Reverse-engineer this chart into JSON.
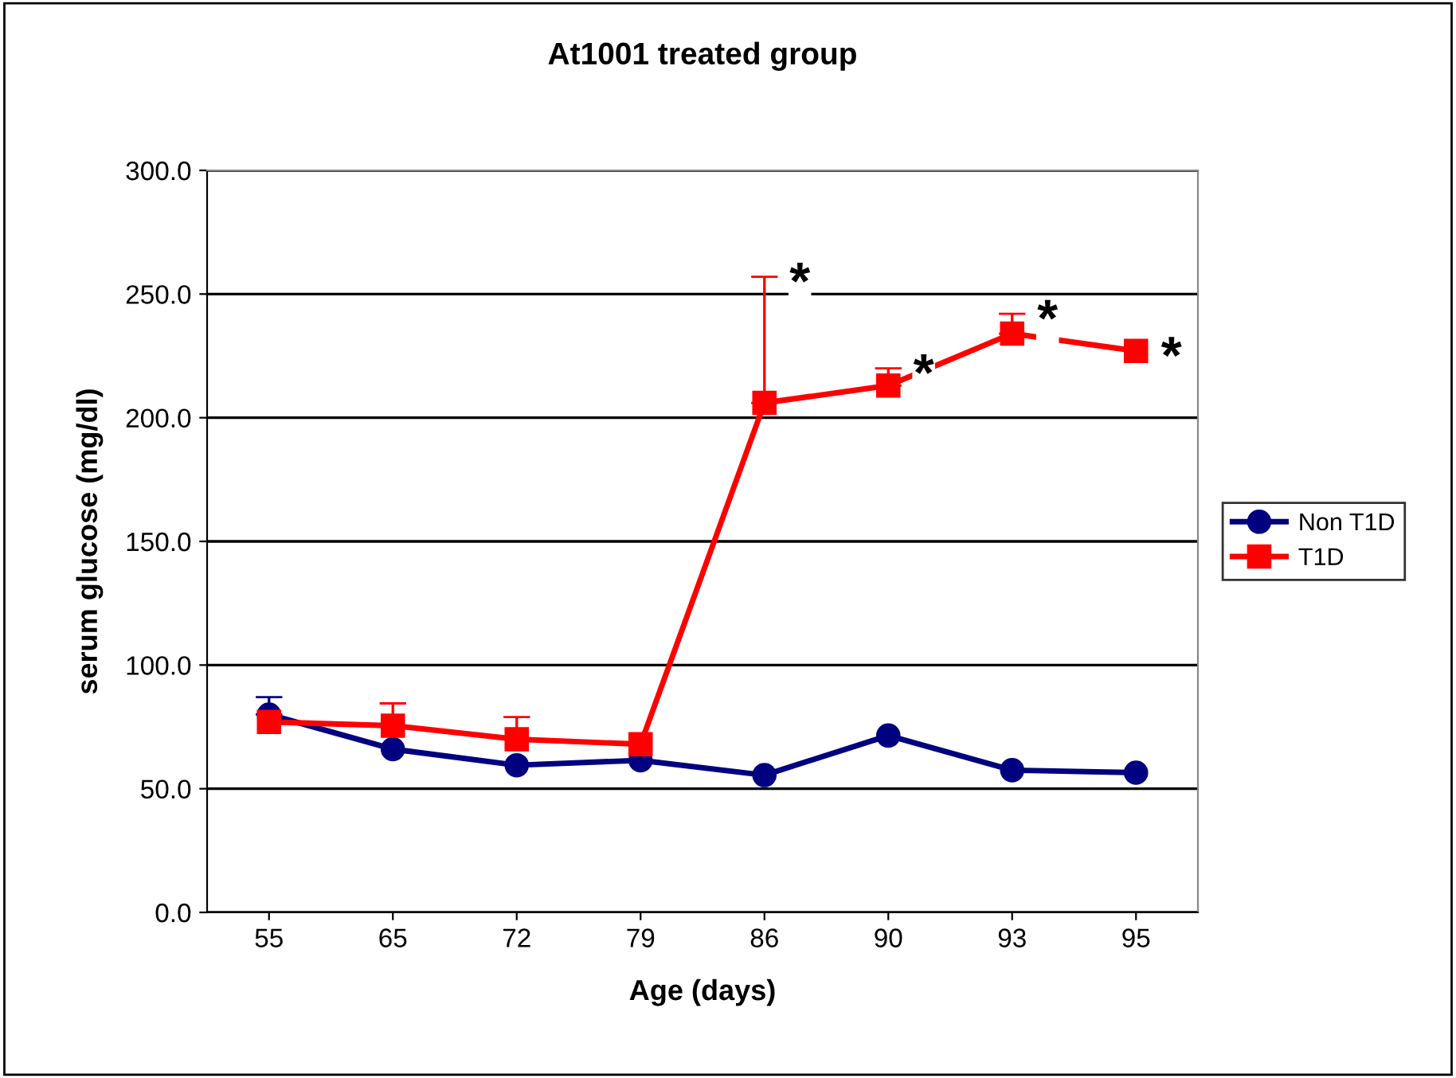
{
  "chart_data": {
    "type": "line",
    "title": "At1001 treated group",
    "xlabel": "Age (days)",
    "ylabel": "serum glucose (mg/dl)",
    "categories": [
      "55",
      "65",
      "72",
      "79",
      "86",
      "90",
      "93",
      "95"
    ],
    "series": [
      {
        "name": "Non T1D",
        "color": "#000080",
        "marker": "circle",
        "values": [
          80,
          66,
          59.5,
          61.5,
          55.5,
          71.5,
          57.5,
          56.5
        ],
        "errors": [
          [
            80,
            87
          ],
          null,
          null,
          null,
          null,
          null,
          null,
          null
        ]
      },
      {
        "name": "T1D",
        "color": "#ff0000",
        "marker": "square",
        "values": [
          77,
          75.5,
          70,
          68,
          206,
          213,
          234,
          227
        ],
        "errors": [
          null,
          [
            75.5,
            84.5
          ],
          [
            70,
            79
          ],
          null,
          [
            206,
            257
          ],
          [
            213,
            220
          ],
          [
            234,
            242
          ],
          null
        ]
      }
    ],
    "ylim": [
      0,
      300
    ],
    "yticks": [
      {
        "value": 0,
        "label": "0.0"
      },
      {
        "value": 50,
        "label": "50.0"
      },
      {
        "value": 100,
        "label": "100.0"
      },
      {
        "value": 150,
        "label": "150.0"
      },
      {
        "value": 200,
        "label": "200.0"
      },
      {
        "value": 250,
        "label": "250.0"
      },
      {
        "value": 300,
        "label": "300.0"
      }
    ],
    "grid": "y",
    "legend": "right",
    "annotations": [
      {
        "text": "*",
        "x": "86",
        "y": 257
      },
      {
        "text": "*",
        "x": "90",
        "y": 220
      },
      {
        "text": "*",
        "x": "93",
        "y": 242
      },
      {
        "text": "*",
        "x": "95",
        "y": 227
      }
    ]
  }
}
